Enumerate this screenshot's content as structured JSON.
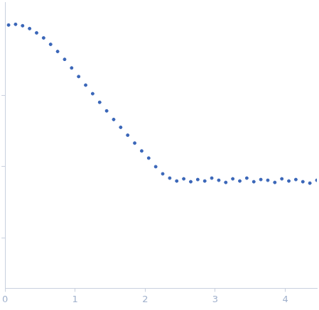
{
  "chart_data": {
    "type": "scatter",
    "marker": "circle",
    "color": "#3a66b8",
    "grid": false,
    "tick_labels": "x",
    "x": [
      0.05,
      0.15,
      0.25,
      0.35,
      0.45,
      0.55,
      0.65,
      0.75,
      0.85,
      0.95,
      1.05,
      1.15,
      1.25,
      1.35,
      1.45,
      1.55,
      1.65,
      1.75,
      1.85,
      1.95,
      2.05,
      2.15,
      2.25,
      2.35,
      2.45,
      2.55,
      2.65,
      2.75,
      2.85,
      2.95,
      3.05,
      3.15,
      3.25,
      3.35,
      3.45,
      3.55,
      3.65,
      3.75,
      3.85,
      3.95,
      4.05,
      4.15,
      4.25,
      4.35,
      4.45
    ],
    "values": [
      2.98,
      2.99,
      2.97,
      2.93,
      2.87,
      2.8,
      2.71,
      2.61,
      2.5,
      2.38,
      2.26,
      2.14,
      2.02,
      1.9,
      1.78,
      1.66,
      1.55,
      1.44,
      1.33,
      1.22,
      1.12,
      1.0,
      0.9,
      0.84,
      0.8,
      0.83,
      0.79,
      0.82,
      0.8,
      0.84,
      0.81,
      0.78,
      0.83,
      0.8,
      0.84,
      0.79,
      0.82,
      0.81,
      0.78,
      0.83,
      0.8,
      0.82,
      0.79,
      0.77,
      0.81
    ],
    "xlim": [
      0,
      4.45
    ],
    "xticks": [
      0,
      1,
      2,
      3,
      4
    ],
    "ylim": [
      -0.7,
      3.3
    ],
    "yticks": [
      0,
      1,
      2
    ]
  }
}
